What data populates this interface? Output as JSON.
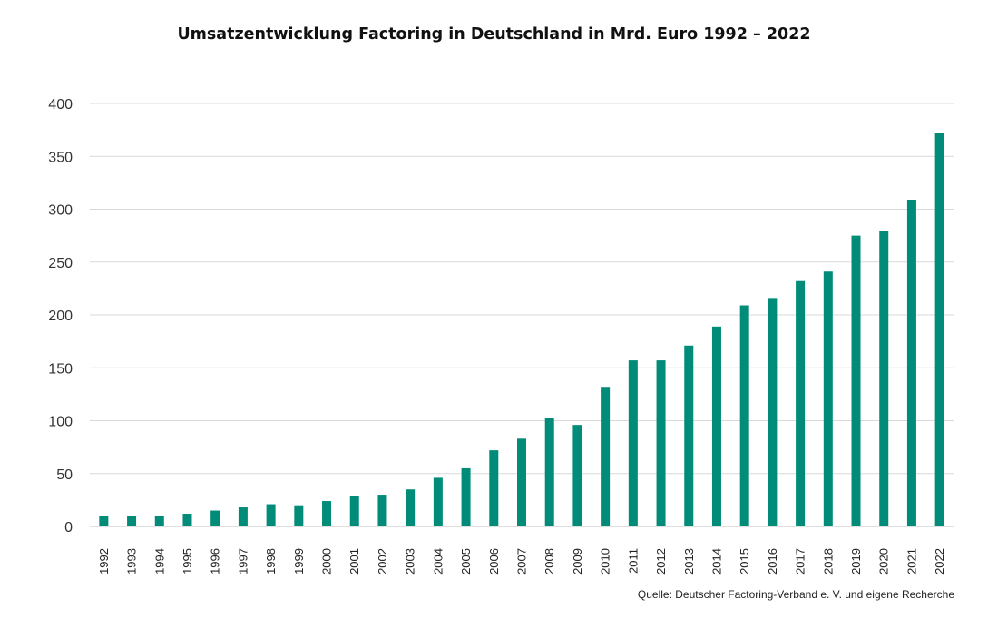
{
  "title": "Umsatzentwicklung Factoring in Deutschland in Mrd. Euro 1992 – 2022",
  "source": "Quelle: Deutscher Factoring-Verband e. V. und eigene Recherche",
  "colors": {
    "bar": "#008C78",
    "grid": "#d9d9d9",
    "axis": "#bfbfbf"
  },
  "chart_data": {
    "type": "bar",
    "title": "Umsatzentwicklung Factoring in Deutschland in Mrd. Euro 1992 – 2022",
    "xlabel": "",
    "ylabel": "",
    "ylim": [
      0,
      400
    ],
    "yticks": [
      0,
      50,
      100,
      150,
      200,
      250,
      300,
      350,
      400
    ],
    "grid": true,
    "legend": "none",
    "categories": [
      "1992",
      "1993",
      "1994",
      "1995",
      "1996",
      "1997",
      "1998",
      "1999",
      "2000",
      "2001",
      "2002",
      "2003",
      "2004",
      "2005",
      "2006",
      "2007",
      "2008",
      "2009",
      "2010",
      "2011",
      "2012",
      "2013",
      "2014",
      "2015",
      "2016",
      "2017",
      "2018",
      "2019",
      "2020",
      "2021",
      "2022"
    ],
    "values": [
      10,
      10,
      10,
      12,
      15,
      18,
      21,
      20,
      24,
      29,
      30,
      35,
      46,
      55,
      72,
      83,
      103,
      96,
      132,
      157,
      157,
      171,
      189,
      209,
      216,
      232,
      241,
      275,
      279,
      309,
      372
    ]
  }
}
